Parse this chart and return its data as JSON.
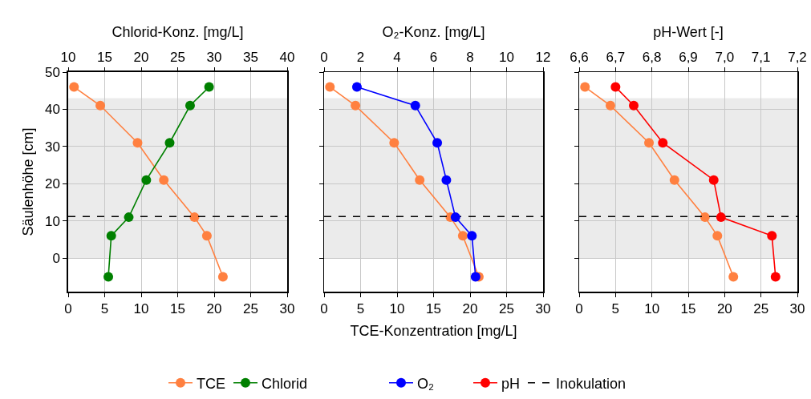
{
  "chart_data": [
    {
      "type": "line",
      "x2label": "Chlorid-Konz. [mg/L]",
      "ylabel": "Säulenhöhe [cm]",
      "xlim": [
        0,
        30
      ],
      "xticks": [
        0,
        5,
        10,
        15,
        20,
        25,
        30
      ],
      "x2lim": [
        10,
        40
      ],
      "x2ticks": [
        10,
        15,
        20,
        25,
        30,
        35,
        40
      ],
      "ylim": [
        -9,
        50
      ],
      "yticks": [
        0,
        10,
        20,
        30,
        40,
        50
      ],
      "grid": true,
      "marker": "circle",
      "line_style": "solid",
      "legend": "bottom",
      "series": [
        {
          "name": "TCE",
          "color": "#ff8040",
          "x": [
            0.8,
            4.4,
            9.5,
            13.1,
            17.3,
            19.0,
            21.2
          ],
          "values": [
            46,
            41,
            31,
            21,
            11,
            6,
            -5
          ]
        },
        {
          "name": "Chlorid",
          "color": "#008000",
          "axis": "x2",
          "x": [
            29.3,
            26.7,
            23.9,
            20.7,
            18.3,
            15.9,
            15.5
          ],
          "values": [
            46,
            41,
            31,
            21,
            11,
            6,
            -5
          ]
        }
      ],
      "ref_lines": [
        {
          "axis": "y",
          "value": 11.2,
          "color": "#000000",
          "line_style": "dashed"
        }
      ],
      "bands": [
        {
          "axis": "y",
          "from": 0,
          "to": 43,
          "color": "#ebebeb"
        }
      ]
    },
    {
      "type": "line",
      "x2label": "O₂-Konz. [mg/L]",
      "xlabel": "TCE-Konzentration [mg/L]",
      "tick_labels": "x",
      "xlim": [
        0,
        30
      ],
      "xticks": [
        0,
        5,
        10,
        15,
        20,
        25,
        30
      ],
      "x2lim": [
        0,
        12
      ],
      "x2ticks": [
        0,
        2,
        4,
        6,
        8,
        10,
        12
      ],
      "ylim": [
        -9,
        50
      ],
      "yticks": [
        0,
        10,
        20,
        30,
        40,
        50
      ],
      "grid": true,
      "marker": "circle",
      "line_style": "solid",
      "legend": "bottom",
      "series": [
        {
          "name": "TCE",
          "color": "#ff8040",
          "x": [
            0.8,
            4.3,
            9.6,
            13.1,
            17.3,
            19.0,
            21.2
          ],
          "values": [
            46,
            41,
            31,
            21,
            11,
            6,
            -5
          ]
        },
        {
          "name": "O₂",
          "color": "#0000ff",
          "axis": "x2",
          "x": [
            1.8,
            5.0,
            6.2,
            6.7,
            7.2,
            8.1,
            8.3
          ],
          "values": [
            46,
            41,
            31,
            21,
            11,
            6,
            -5
          ]
        }
      ],
      "ref_lines": [
        {
          "axis": "y",
          "value": 11.2,
          "color": "#000000",
          "line_style": "dashed"
        }
      ],
      "bands": [
        {
          "axis": "y",
          "from": 0,
          "to": 43,
          "color": "#ebebeb"
        }
      ]
    },
    {
      "type": "line",
      "x2label": "pH-Wert [-]",
      "tick_labels": "x",
      "xlim": [
        0,
        30
      ],
      "xticks": [
        0,
        5,
        10,
        15,
        20,
        25,
        30
      ],
      "x2lim": [
        6.6,
        7.2
      ],
      "x2ticks": [
        {
          "value": 6.6,
          "label": "6,6"
        },
        {
          "value": 6.7,
          "label": "6,7"
        },
        {
          "value": 6.8,
          "label": "6,8"
        },
        {
          "value": 6.9,
          "label": "6,9"
        },
        {
          "value": 7.0,
          "label": "7,0"
        },
        {
          "value": 7.1,
          "label": "7,1"
        },
        {
          "value": 7.2,
          "label": "7,2"
        }
      ],
      "ylim": [
        -9,
        50
      ],
      "yticks": [
        0,
        10,
        20,
        30,
        40,
        50
      ],
      "grid": true,
      "marker": "circle",
      "line_style": "solid",
      "legend": "bottom",
      "series": [
        {
          "name": "TCE",
          "color": "#ff8040",
          "x": [
            0.8,
            4.3,
            9.6,
            13.1,
            17.3,
            19.0,
            21.2
          ],
          "values": [
            46,
            41,
            31,
            21,
            11,
            6,
            -5
          ]
        },
        {
          "name": "pH",
          "color": "#ff0000",
          "axis": "x2",
          "x": [
            6.7,
            6.75,
            6.83,
            6.97,
            6.99,
            7.13,
            7.14
          ],
          "values": [
            46,
            41,
            31,
            21,
            11,
            6,
            -5
          ]
        }
      ],
      "ref_lines": [
        {
          "axis": "y",
          "value": 11.2,
          "label": "Inokulation",
          "color": "#000000",
          "line_style": "dashed"
        }
      ],
      "bands": [
        {
          "axis": "y",
          "from": 0,
          "to": 43,
          "color": "#ebebeb"
        }
      ]
    }
  ]
}
